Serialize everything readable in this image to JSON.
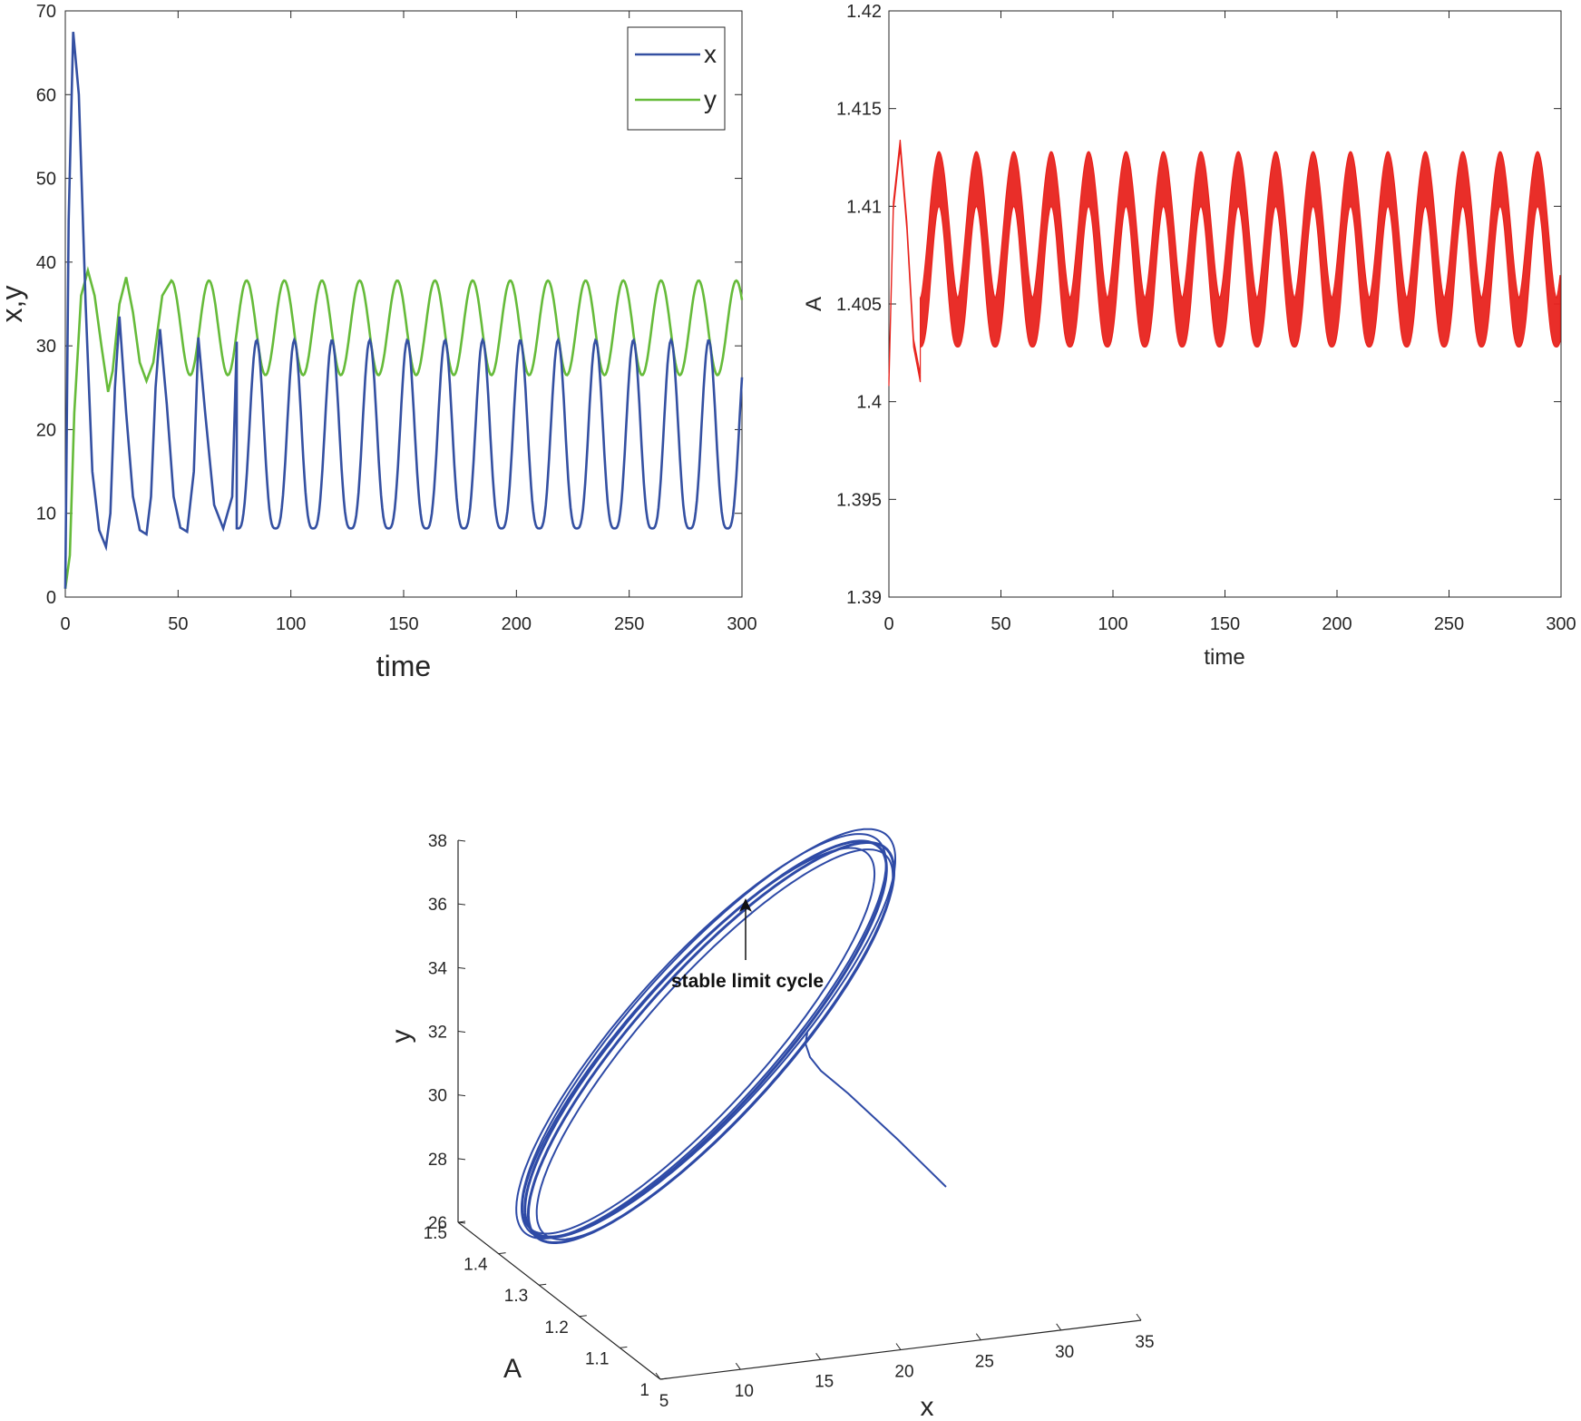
{
  "chart_data": [
    {
      "type": "line",
      "xlabel": "time",
      "ylabel": "x,y",
      "xlim": [
        0,
        300
      ],
      "ylim": [
        0,
        70
      ],
      "xticks": [
        "0",
        "50",
        "100",
        "150",
        "200",
        "250",
        "300"
      ],
      "yticks": [
        "0",
        "10",
        "20",
        "30",
        "40",
        "50",
        "60",
        "70"
      ],
      "grid": false,
      "legend_position": "top-right",
      "series": [
        {
          "name": "x",
          "color": "#3450a2",
          "x": [
            0,
            1.5,
            3.5,
            6,
            9,
            12,
            15,
            18,
            20,
            22,
            24,
            27,
            30,
            33,
            36,
            38,
            40,
            42,
            45,
            48,
            51,
            54,
            57,
            59,
            62,
            66,
            70,
            74,
            76,
            300
          ],
          "y": [
            1,
            45,
            67.5,
            60,
            35,
            15,
            8,
            6,
            10,
            25,
            33.5,
            22,
            12,
            8,
            7.5,
            12,
            25,
            32,
            23,
            12,
            8.3,
            7.8,
            15,
            31,
            22,
            11,
            8.2,
            12,
            30.5,
            16.5
          ],
          "steady_state": {
            "period": 16.7,
            "min": 8.2,
            "max": 30.7
          }
        },
        {
          "name": "y",
          "color": "#66bb3a",
          "x": [
            0,
            2,
            4,
            7,
            10,
            13,
            16,
            19,
            21,
            24,
            27,
            30,
            33,
            36,
            39,
            43,
            47,
            300
          ],
          "y": [
            1,
            5,
            22,
            36,
            39,
            36,
            30,
            24.5,
            27,
            35,
            38.2,
            34,
            28,
            25.8,
            28,
            36,
            37.8,
            35.5
          ],
          "steady_state": {
            "period": 16.7,
            "min": 26.5,
            "max": 37.8
          }
        }
      ]
    },
    {
      "type": "line",
      "xlabel": "time",
      "ylabel": "A",
      "xlim": [
        0,
        300
      ],
      "ylim": [
        1.39,
        1.42
      ],
      "xticks": [
        "0",
        "50",
        "100",
        "150",
        "200",
        "250",
        "300"
      ],
      "yticks": [
        "1.39",
        "1.395",
        "1.4",
        "1.405",
        "1.41",
        "1.415",
        "1.42"
      ],
      "grid": false,
      "series": [
        {
          "color": "#e8231d",
          "band": {
            "upper_max": 1.4128,
            "upper_min": 1.41,
            "lower_min": 1.4028,
            "lower_max": 1.4053,
            "period": 16.7
          },
          "x": [
            0,
            2,
            5,
            8,
            11,
            14,
            300
          ],
          "y": [
            1.401,
            1.41,
            1.4132,
            1.409,
            1.403,
            1.4012,
            1.4035
          ]
        }
      ]
    },
    {
      "type": "line3d",
      "xlabel": "x",
      "ylabel": "A",
      "zlabel": "y",
      "xlim": [
        5,
        35
      ],
      "ylim": [
        1,
        1.5
      ],
      "zlim": [
        26,
        38
      ],
      "xticks": [
        "5",
        "10",
        "15",
        "20",
        "25",
        "30",
        "35"
      ],
      "yticks": [
        "1",
        "1.1",
        "1.2",
        "1.3",
        "1.4",
        "1.5"
      ],
      "zticks": [
        "26",
        "28",
        "30",
        "32",
        "34",
        "36",
        "38"
      ],
      "color": "#2e4aa6",
      "annotation": "stable limit cycle"
    }
  ]
}
